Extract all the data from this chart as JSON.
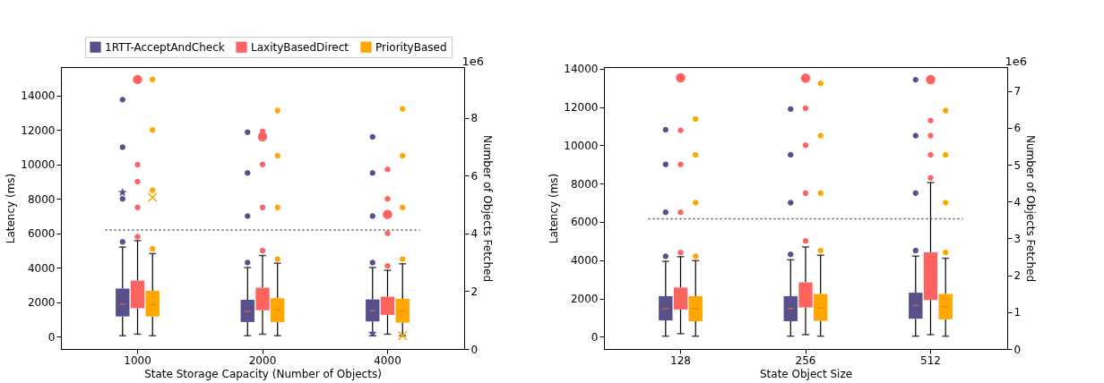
{
  "chart_data": [
    {
      "type": "box",
      "xlabel": "State Storage Capacity (Number of Objects)",
      "ylabel": "Latency (ms)",
      "y2label": "Number of Objects Fetched",
      "categories": [
        "1000",
        "2000",
        "4000"
      ],
      "ylim": [
        -720,
        15650
      ],
      "yticks": [
        0,
        2000,
        4000,
        6000,
        8000,
        10000,
        12000,
        14000
      ],
      "y2lim": [
        0,
        9.76
      ],
      "y2ticks": [
        0,
        2,
        4,
        6,
        8
      ],
      "annotations": [
        "1e6"
      ],
      "legend": "top",
      "grid": false,
      "ref_lines": [
        {
          "axis": "y",
          "value": 6190,
          "color": "#555555",
          "line_style": "dotted"
        }
      ],
      "series": [
        {
          "name": "1RTT-AcceptAndCheck",
          "color": "#58508d",
          "boxes": [
            {
              "low": 50,
              "q1": 1170,
              "median": 1890,
              "q3": 2790,
              "high": 5200,
              "outliers": [
                5500,
                8000,
                11000,
                13760
              ]
            },
            {
              "low": 50,
              "q1": 845,
              "median": 1460,
              "q3": 2140,
              "high": 4010,
              "outliers": [
                4300,
                7000,
                9500,
                11870
              ]
            },
            {
              "low": 50,
              "q1": 880,
              "median": 1510,
              "q3": 2160,
              "high": 4010,
              "outliers": [
                4300,
                7000,
                9500,
                11600
              ]
            }
          ]
        },
        {
          "name": "LaxityBasedDirect",
          "color": "#ff6361",
          "boxes": [
            {
              "low": 140,
              "q1": 1650,
              "median": 2250,
              "q3": 3255,
              "high": 5575,
              "outliers": [
                5800,
                7500,
                9000,
                9980
              ]
            },
            {
              "low": 140,
              "q1": 1530,
              "median": 2140,
              "q3": 2840,
              "high": 4710,
              "outliers": [
                5000,
                7500,
                10000,
                11920
              ]
            },
            {
              "low": 140,
              "q1": 1260,
              "median": 1835,
              "q3": 2320,
              "high": 3850,
              "outliers": [
                4100,
                6000,
                8000,
                9710
              ]
            }
          ]
        },
        {
          "name": "PriorityBased",
          "color": "#ffa600",
          "boxes": [
            {
              "low": 50,
              "q1": 1170,
              "median": 1850,
              "q3": 2660,
              "high": 4820,
              "outliers": [
                5100,
                8500,
                12000,
                14930
              ]
            },
            {
              "low": 50,
              "q1": 845,
              "median": 1565,
              "q3": 2230,
              "high": 4260,
              "outliers": [
                4500,
                7500,
                10500,
                13130
              ]
            },
            {
              "low": 50,
              "q1": 810,
              "median": 1510,
              "q3": 2190,
              "high": 4230,
              "outliers": [
                4500,
                7500,
                10500,
                13220
              ]
            }
          ]
        },
        {
          "type": "scatter",
          "axis": "y2",
          "marker": "star",
          "color": "#58508d",
          "values": [
            5.42,
            null,
            0.54
          ]
        },
        {
          "type": "scatter",
          "axis": "y2",
          "marker": "circle",
          "color": "#ff6361",
          "values": [
            9.33,
            7.35,
            4.66
          ]
        },
        {
          "type": "scatter",
          "axis": "y2",
          "marker": "cross",
          "color": "#ffa600",
          "values": [
            5.25,
            null,
            0.46
          ]
        }
      ]
    },
    {
      "type": "box",
      "xlabel": "State Object Size",
      "ylabel": "Latency (ms)",
      "y2label": "Number of Objects Fetched",
      "categories": [
        "128",
        "256",
        "512"
      ],
      "ylim": [
        -640,
        14080
      ],
      "yticks": [
        0,
        2000,
        4000,
        6000,
        8000,
        10000,
        12000,
        14000
      ],
      "y2lim": [
        0,
        7.65
      ],
      "y2ticks": [
        0,
        1,
        2,
        3,
        4,
        5,
        6,
        7
      ],
      "annotations": [
        "1e6"
      ],
      "legend": "top left",
      "grid": false,
      "ref_lines": [
        {
          "axis": "y",
          "value": 6160,
          "color": "#555555",
          "line_style": "dotted"
        }
      ],
      "series": [
        {
          "name": "1RTT-AcceptAndCheck",
          "color": "#58508d",
          "boxes": [
            {
              "low": 30,
              "q1": 850,
              "median": 1470,
              "q3": 2120,
              "high": 3940,
              "outliers": [
                4200,
                6500,
                9000,
                10810
              ]
            },
            {
              "low": 30,
              "q1": 810,
              "median": 1470,
              "q3": 2120,
              "high": 4020,
              "outliers": [
                4300,
                7000,
                9500,
                11890
              ]
            },
            {
              "low": 30,
              "q1": 940,
              "median": 1630,
              "q3": 2300,
              "high": 4210,
              "outliers": [
                4500,
                7500,
                10500,
                13420
              ]
            }
          ]
        },
        {
          "name": "LaxityBasedDirect",
          "color": "#ff6361",
          "boxes": [
            {
              "low": 160,
              "q1": 1420,
              "median": 2040,
              "q3": 2570,
              "high": 4180,
              "outliers": [
                4400,
                6500,
                9000,
                10780
              ]
            },
            {
              "low": 110,
              "q1": 1530,
              "median": 2150,
              "q3": 2840,
              "high": 4690,
              "outliers": [
                5000,
                7500,
                10000,
                11930
              ]
            },
            {
              "low": 110,
              "q1": 1920,
              "median": 2750,
              "q3": 4410,
              "high": 8050,
              "outliers": [
                8300,
                9500,
                10500,
                11290
              ]
            }
          ]
        },
        {
          "name": "PriorityBased",
          "color": "#ffa600",
          "boxes": [
            {
              "low": 30,
              "q1": 810,
              "median": 1470,
              "q3": 2120,
              "high": 3975,
              "outliers": [
                4200,
                7000,
                9500,
                11370
              ]
            },
            {
              "low": 30,
              "q1": 830,
              "median": 1500,
              "q3": 2235,
              "high": 4260,
              "outliers": [
                4500,
                7500,
                10500,
                13230
              ]
            },
            {
              "low": 30,
              "q1": 910,
              "median": 1580,
              "q3": 2235,
              "high": 4100,
              "outliers": [
                4400,
                7000,
                9500,
                11810
              ]
            }
          ]
        },
        {
          "type": "scatter",
          "axis": "y2",
          "marker": "circle",
          "color": "#ff6361",
          "values": [
            7.36,
            7.35,
            7.31
          ]
        }
      ]
    }
  ]
}
